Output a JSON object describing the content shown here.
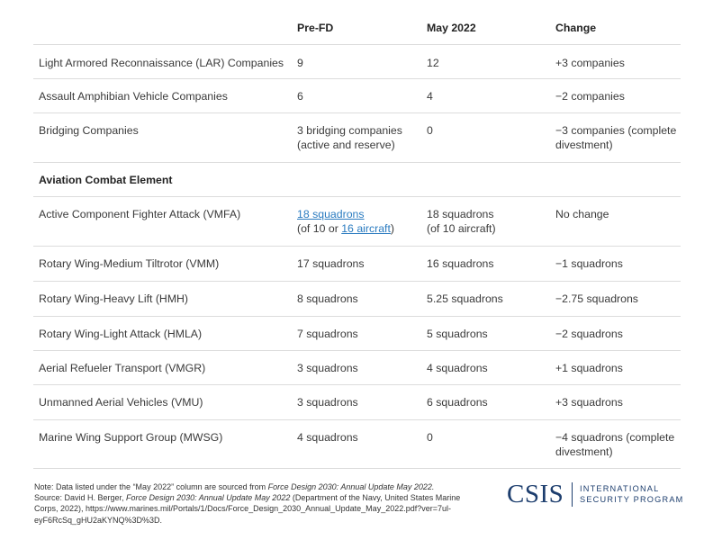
{
  "table": {
    "headers": [
      "",
      "Pre-FD",
      "May 2022",
      "Change"
    ],
    "rows": [
      {
        "label": "Light Armored Reconnaissance (LAR) Companies",
        "pre": "9",
        "may": "12",
        "change": "+3 companies"
      },
      {
        "label": "Assault Amphibian Vehicle Companies",
        "pre": "6",
        "may": "4",
        "change": "−2 companies"
      },
      {
        "label": "Bridging Companies",
        "pre_line1": "3 bridging companies",
        "pre_line2": "(active and reserve)",
        "may": "0",
        "change_line1": "−3 companies (complete",
        "change_line2": "divestment)"
      },
      {
        "section": "Aviation Combat Element"
      },
      {
        "label": "Active Component Fighter Attack (VMFA)",
        "pre_link": "18 squadrons",
        "pre_line2_a": "(of 10 or ",
        "pre_link2": "16 aircraft",
        "pre_line2_b": ")",
        "may_line1": "18 squadrons",
        "may_line2": "(of 10 aircraft)",
        "change": "No change"
      },
      {
        "label": "Rotary Wing-Medium Tiltrotor (VMM)",
        "pre": "17 squadrons",
        "may": "16 squadrons",
        "change": "−1 squadrons"
      },
      {
        "label": "Rotary Wing-Heavy Lift (HMH)",
        "pre": "8 squadrons",
        "may": "5.25 squadrons",
        "change": "−2.75 squadrons"
      },
      {
        "label": "Rotary Wing-Light Attack (HMLA)",
        "pre": "7 squadrons",
        "may": "5 squadrons",
        "change": "−2 squadrons"
      },
      {
        "label": "Aerial Refueler Transport (VMGR)",
        "pre": "3 squadrons",
        "may": "4 squadrons",
        "change": "+1 squadrons"
      },
      {
        "label": "Unmanned Aerial Vehicles (VMU)",
        "pre": "3 squadrons",
        "may": "6 squadrons",
        "change": "+3 squadrons"
      },
      {
        "label": "Marine Wing Support Group (MWSG)",
        "pre": "4 squadrons",
        "may": "0",
        "change_line1": "−4 squadrons (complete",
        "change_line2": "divestment)"
      }
    ]
  },
  "note": {
    "l1_a": "Note: Data listed under the “May 2022” column are sourced from ",
    "l1_i": "Force Design 2030: Annual Update May 2022.",
    "l2_a": "Source: David H. Berger, ",
    "l2_i": "Force Design 2030: Annual Update May 2022",
    "l2_b": " (Department of the Navy, United States Marine",
    "l3": "Corps, 2022), https://www.marines.mil/Portals/1/Docs/Force_Design_2030_Annual_Update_May_2022.pdf?ver=7ul-",
    "l4": "eyF6RcSq_gHU2aKYNQ%3D%3D."
  },
  "logo": {
    "main": "CSIS",
    "sub1": "INTERNATIONAL",
    "sub2": "SECURITY PROGRAM",
    "color": "#1d3e6e"
  },
  "colors": {
    "link": "#2a7bc0",
    "divider": "#dcdcdc"
  }
}
